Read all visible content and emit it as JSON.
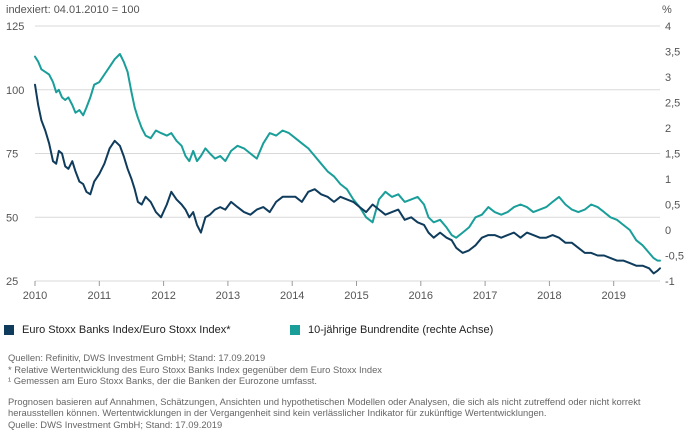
{
  "chart_data": {
    "type": "line",
    "title": "indexiert: 04.01.2010 = 100",
    "y_left_ticks": [
      "125",
      "100",
      "75",
      "50",
      "25"
    ],
    "y_left_range": [
      25,
      125
    ],
    "y_right_unit": "%",
    "y_right_ticks": [
      "4",
      "3,5",
      "3",
      "2,5",
      "2",
      "1,5",
      "1",
      "0,5",
      "0",
      "-0,5",
      "-1"
    ],
    "y_right_range": [
      -1,
      4
    ],
    "x_ticks": [
      "2010",
      "2011",
      "2012",
      "2013",
      "2014",
      "2015",
      "2016",
      "2017",
      "2018",
      "2019"
    ],
    "x_range": [
      2010.0,
      2019.72
    ],
    "grid": "horizontal",
    "series": [
      {
        "name": "Euro Stoxx Banks Index/Euro Stoxx Index*",
        "axis": "left",
        "color": "#0f3c5c",
        "x": [
          2010.0,
          2010.05,
          2010.1,
          2010.16,
          2010.22,
          2010.28,
          2010.33,
          2010.37,
          2010.42,
          2010.47,
          2010.52,
          2010.58,
          2010.63,
          2010.69,
          2010.75,
          2010.8,
          2010.86,
          2010.92,
          2011.0,
          2011.08,
          2011.16,
          2011.24,
          2011.32,
          2011.38,
          2011.44,
          2011.5,
          2011.55,
          2011.6,
          2011.66,
          2011.72,
          2011.8,
          2011.88,
          2011.96,
          2012.05,
          2012.12,
          2012.2,
          2012.28,
          2012.34,
          2012.4,
          2012.46,
          2012.52,
          2012.58,
          2012.65,
          2012.72,
          2012.8,
          2012.88,
          2012.96,
          2013.05,
          2013.15,
          2013.25,
          2013.35,
          2013.45,
          2013.55,
          2013.65,
          2013.75,
          2013.85,
          2013.95,
          2014.05,
          2014.15,
          2014.25,
          2014.35,
          2014.45,
          2014.55,
          2014.65,
          2014.75,
          2014.85,
          2014.95,
          2015.05,
          2015.15,
          2015.25,
          2015.35,
          2015.45,
          2015.55,
          2015.65,
          2015.75,
          2015.85,
          2015.95,
          2016.05,
          2016.12,
          2016.2,
          2016.3,
          2016.4,
          2016.48,
          2016.55,
          2016.65,
          2016.75,
          2016.85,
          2016.95,
          2017.05,
          2017.15,
          2017.25,
          2017.35,
          2017.45,
          2017.55,
          2017.65,
          2017.75,
          2017.85,
          2017.95,
          2018.05,
          2018.15,
          2018.25,
          2018.35,
          2018.45,
          2018.55,
          2018.65,
          2018.75,
          2018.85,
          2018.95,
          2019.05,
          2019.15,
          2019.25,
          2019.35,
          2019.45,
          2019.55,
          2019.62,
          2019.68,
          2019.72
        ],
        "values": [
          102,
          94,
          88,
          84,
          79,
          72,
          71,
          76,
          75,
          70,
          69,
          72,
          68,
          64,
          63,
          60,
          59,
          64,
          67,
          71,
          77,
          80,
          78,
          74,
          69,
          65,
          61,
          56,
          55,
          58,
          56,
          52,
          50,
          55,
          60,
          57,
          55,
          53,
          50,
          52,
          47,
          44,
          50,
          51,
          53,
          54,
          53,
          56,
          54,
          52,
          51,
          53,
          54,
          52,
          56,
          58,
          58,
          58,
          56,
          60,
          61,
          59,
          58,
          56,
          58,
          57,
          56,
          54,
          52,
          55,
          53,
          51,
          52,
          53,
          49,
          50,
          48,
          47,
          44,
          42,
          44,
          42,
          41,
          38,
          36,
          37,
          39,
          42,
          43,
          43,
          42,
          43,
          44,
          42,
          44,
          43,
          42,
          42,
          43,
          42,
          40,
          40,
          38,
          36,
          36,
          35,
          35,
          34,
          33,
          33,
          32,
          31,
          31,
          30,
          28,
          29,
          30
        ]
      },
      {
        "name": "10-jährige Bundrendite (rechte Achse)",
        "axis": "right",
        "color": "#1a9e9a",
        "x": [
          2010.0,
          2010.05,
          2010.1,
          2010.16,
          2010.22,
          2010.28,
          2010.33,
          2010.37,
          2010.42,
          2010.47,
          2010.52,
          2010.58,
          2010.63,
          2010.69,
          2010.75,
          2010.8,
          2010.86,
          2010.92,
          2011.0,
          2011.08,
          2011.16,
          2011.24,
          2011.32,
          2011.38,
          2011.44,
          2011.5,
          2011.55,
          2011.6,
          2011.66,
          2011.72,
          2011.8,
          2011.88,
          2011.96,
          2012.05,
          2012.12,
          2012.2,
          2012.28,
          2012.34,
          2012.4,
          2012.46,
          2012.52,
          2012.58,
          2012.65,
          2012.72,
          2012.8,
          2012.88,
          2012.96,
          2013.05,
          2013.15,
          2013.25,
          2013.35,
          2013.45,
          2013.55,
          2013.65,
          2013.75,
          2013.85,
          2013.95,
          2014.05,
          2014.15,
          2014.25,
          2014.35,
          2014.45,
          2014.55,
          2014.65,
          2014.75,
          2014.85,
          2014.95,
          2015.05,
          2015.15,
          2015.25,
          2015.35,
          2015.45,
          2015.55,
          2015.65,
          2015.75,
          2015.85,
          2015.95,
          2016.05,
          2016.12,
          2016.2,
          2016.3,
          2016.4,
          2016.48,
          2016.55,
          2016.65,
          2016.75,
          2016.85,
          2016.95,
          2017.05,
          2017.15,
          2017.25,
          2017.35,
          2017.45,
          2017.55,
          2017.65,
          2017.75,
          2017.85,
          2017.95,
          2018.05,
          2018.15,
          2018.25,
          2018.35,
          2018.45,
          2018.55,
          2018.65,
          2018.75,
          2018.85,
          2018.95,
          2019.05,
          2019.15,
          2019.25,
          2019.35,
          2019.45,
          2019.55,
          2019.62,
          2019.68,
          2019.72
        ],
        "values": [
          3.4,
          3.3,
          3.15,
          3.1,
          3.05,
          2.9,
          2.7,
          2.75,
          2.6,
          2.55,
          2.6,
          2.45,
          2.3,
          2.35,
          2.25,
          2.4,
          2.6,
          2.85,
          2.9,
          3.05,
          3.2,
          3.35,
          3.45,
          3.3,
          3.1,
          2.7,
          2.4,
          2.2,
          2.0,
          1.85,
          1.8,
          1.95,
          1.9,
          1.85,
          1.9,
          1.75,
          1.65,
          1.45,
          1.35,
          1.55,
          1.35,
          1.45,
          1.6,
          1.5,
          1.4,
          1.45,
          1.35,
          1.55,
          1.65,
          1.6,
          1.5,
          1.4,
          1.7,
          1.9,
          1.85,
          1.95,
          1.9,
          1.8,
          1.7,
          1.6,
          1.45,
          1.3,
          1.15,
          1.05,
          0.9,
          0.8,
          0.6,
          0.45,
          0.25,
          0.15,
          0.6,
          0.75,
          0.65,
          0.7,
          0.55,
          0.6,
          0.65,
          0.5,
          0.25,
          0.15,
          0.2,
          0.05,
          -0.1,
          -0.15,
          -0.05,
          0.05,
          0.25,
          0.3,
          0.45,
          0.35,
          0.3,
          0.35,
          0.45,
          0.5,
          0.45,
          0.35,
          0.4,
          0.45,
          0.55,
          0.65,
          0.5,
          0.4,
          0.35,
          0.4,
          0.5,
          0.45,
          0.35,
          0.25,
          0.2,
          0.1,
          0.0,
          -0.2,
          -0.3,
          -0.45,
          -0.55,
          -0.6,
          -0.6
        ]
      }
    ]
  },
  "legend": {
    "item1": "Euro Stoxx Banks Index/Euro Stoxx Index*",
    "item2": "10-jährige Bundrendite (rechte Achse)"
  },
  "notes": {
    "source": "Quellen: Refinitiv, DWS Investment GmbH; Stand: 17.09.2019",
    "footnote_star": "* Relative Wertentwicklung des Euro Stoxx Banks Index gegenüber dem Euro Stoxx Index",
    "footnote_one": "¹ Gemessen am Euro Stoxx Banks, der die Banken der Eurozone umfasst.",
    "disclaimer_1": "Prognosen basieren auf Annahmen, Schätzungen, Ansichten und hypothetischen Modellen oder Analysen, die sich als nicht zutreffend oder nicht korrekt",
    "disclaimer_2": "herausstellen können. Wertentwicklungen in der Vergangenheit sind kein verlässlicher Indikator für zukünftige Wertentwicklungen.",
    "source_final": "Quelle: DWS Investment GmbH; Stand: 17.09.2019"
  }
}
